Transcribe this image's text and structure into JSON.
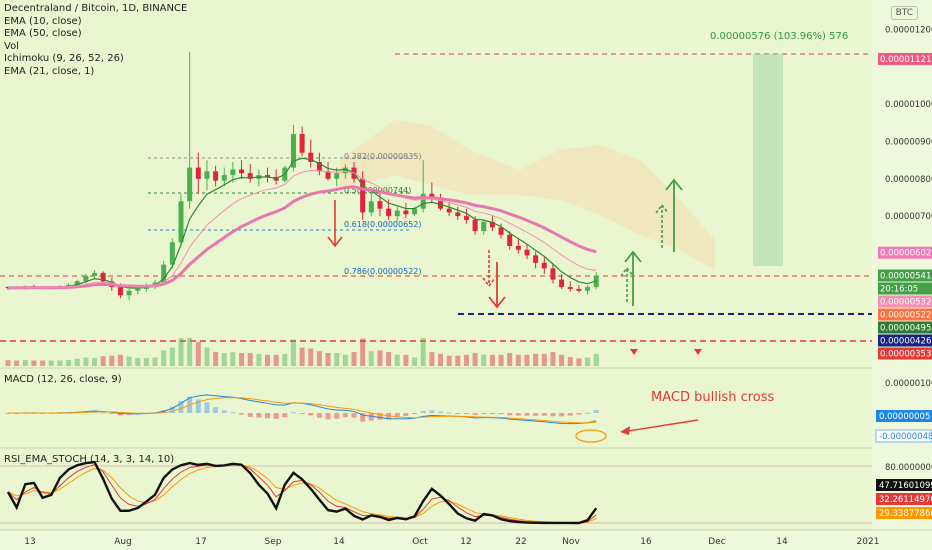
{
  "header": {
    "title": "Decentraland / Bitcoin, 1D, BINANCE",
    "indicators": [
      "EMA (10, close)",
      "EMA (50, close)",
      "Vol",
      "Ichimoku (9, 26, 52, 26)",
      "EMA (21, close, 1)"
    ],
    "currency": "BTC"
  },
  "colors": {
    "background": "#e9f6cf",
    "up": "#4caf50",
    "down": "#e0243c",
    "ema10": "#2e8b2e",
    "ema50": "#e877b0",
    "macd": "#1e88e5",
    "signal": "#ff9800",
    "arrow_down": "#e53935",
    "arrow_up": "#43a047",
    "support": "#1a237e"
  },
  "price_axis": {
    "ticks": [
      "0.00001200",
      "0.00001000",
      "0.00000900",
      "0.00000800",
      "0.00000700"
    ],
    "scale_max": 1.22e-05,
    "scale_min": 3.2e-06,
    "labels": [
      {
        "text": "0.00001121",
        "value": 1.121e-05,
        "bg": "#ef5a82",
        "fg": "#ffffff"
      },
      {
        "text": "0.00000602",
        "value": 6.02e-06,
        "bg": "#f27ab6",
        "fg": "#ffffff"
      },
      {
        "text": "0.00000541",
        "value": 5.41e-06,
        "bg": "#43a047",
        "fg": "#ffffff"
      },
      {
        "text": "20:16:05",
        "value": 5.41e-06,
        "bg": "#43a047",
        "fg": "#ffffff"
      },
      {
        "text": "0.00000532",
        "value": 5.32e-06,
        "bg": "#f48fb1",
        "fg": "#ffffff"
      },
      {
        "text": "0.00000522",
        "value": 5.22e-06,
        "bg": "#ff7043",
        "fg": "#ffffff"
      },
      {
        "text": "0.00000495",
        "value": 4.95e-06,
        "bg": "#2e7d32",
        "fg": "#ffffff"
      },
      {
        "text": "0.00000426",
        "value": 4.26e-06,
        "bg": "#1a237e",
        "fg": "#ffffff"
      },
      {
        "text": "0.00000353",
        "value": 3.53e-06,
        "bg": "#e53935",
        "fg": "#ffffff"
      }
    ]
  },
  "annotations": {
    "measure": "0.00000576 (103.96%) 576",
    "fib": [
      "0.382(0.00000835)",
      "0.5(0.00000744)",
      "0.618(0.00000652)",
      "0.786(0.00000522)"
    ],
    "macd_note": "MACD bullish cross"
  },
  "macd": {
    "title": "MACD (12, 26, close, 9)",
    "axis_top": "0.00000100",
    "labels": [
      {
        "text": "0.00000005",
        "bg": "#1e88e5"
      },
      {
        "text": "-0.00000048",
        "bg": "#ffffff"
      }
    ]
  },
  "stoch": {
    "title": "RSI_EMA_STOCH (14, 3, 3, 14, 10)",
    "axis_top": "80.00000000",
    "labels": [
      {
        "text": "47.71601099",
        "bg": "#111111"
      },
      {
        "text": "32.26114970",
        "bg": "#e53935"
      },
      {
        "text": "29.33877866",
        "bg": "#ff9800"
      }
    ]
  },
  "time_axis": {
    "labels": [
      "13",
      "Aug",
      "17",
      "Sep",
      "14",
      "Oct",
      "12",
      "22",
      "Nov",
      "16",
      "Dec",
      "14",
      "2021"
    ]
  },
  "chart_data": {
    "type": "candlestick",
    "title": "Decentraland / Bitcoin, 1D, BINANCE",
    "interval": "1D",
    "unit": "BTC",
    "price_range": [
      3.5e-06,
      1.2e-05
    ],
    "ohlc_approx": [
      [
        510,
        512,
        502,
        508
      ],
      [
        508,
        512,
        504,
        506
      ],
      [
        506,
        514,
        503,
        512
      ],
      [
        512,
        516,
        508,
        510
      ],
      [
        510,
        513,
        505,
        507
      ],
      [
        507,
        512,
        504,
        509
      ],
      [
        509,
        515,
        506,
        512
      ],
      [
        512,
        520,
        509,
        516
      ],
      [
        516,
        530,
        512,
        526
      ],
      [
        526,
        545,
        520,
        540
      ],
      [
        540,
        555,
        532,
        548
      ],
      [
        548,
        552,
        520,
        525
      ],
      [
        525,
        535,
        500,
        510
      ],
      [
        510,
        520,
        480,
        488
      ],
      [
        488,
        505,
        475,
        500
      ],
      [
        500,
        512,
        490,
        505
      ],
      [
        505,
        520,
        498,
        515
      ],
      [
        515,
        530,
        505,
        522
      ],
      [
        522,
        580,
        515,
        570
      ],
      [
        570,
        640,
        560,
        630
      ],
      [
        630,
        760,
        620,
        740
      ],
      [
        740,
        1140,
        720,
        830
      ],
      [
        830,
        870,
        760,
        800
      ],
      [
        800,
        850,
        770,
        820
      ],
      [
        820,
        835,
        780,
        795
      ],
      [
        795,
        830,
        780,
        810
      ],
      [
        810,
        845,
        790,
        825
      ],
      [
        825,
        850,
        800,
        815
      ],
      [
        815,
        840,
        790,
        800
      ],
      [
        800,
        825,
        780,
        810
      ],
      [
        810,
        830,
        790,
        805
      ],
      [
        805,
        825,
        785,
        795
      ],
      [
        795,
        835,
        790,
        830
      ],
      [
        830,
        945,
        820,
        920
      ],
      [
        920,
        940,
        860,
        870
      ],
      [
        870,
        905,
        830,
        845
      ],
      [
        845,
        870,
        810,
        820
      ],
      [
        820,
        845,
        795,
        800
      ],
      [
        800,
        830,
        780,
        815
      ],
      [
        815,
        840,
        800,
        830
      ],
      [
        830,
        845,
        790,
        800
      ],
      [
        800,
        820,
        690,
        710
      ],
      [
        710,
        760,
        700,
        740
      ],
      [
        740,
        765,
        700,
        720
      ],
      [
        720,
        745,
        690,
        700
      ],
      [
        700,
        725,
        685,
        715
      ],
      [
        715,
        735,
        695,
        705
      ],
      [
        705,
        725,
        700,
        720
      ],
      [
        720,
        850,
        710,
        760
      ],
      [
        760,
        790,
        735,
        745
      ],
      [
        745,
        760,
        715,
        720
      ],
      [
        720,
        735,
        700,
        710
      ],
      [
        710,
        725,
        690,
        700
      ],
      [
        700,
        720,
        680,
        690
      ],
      [
        690,
        700,
        650,
        660
      ],
      [
        660,
        690,
        650,
        685
      ],
      [
        685,
        700,
        660,
        670
      ],
      [
        670,
        680,
        640,
        650
      ],
      [
        650,
        660,
        610,
        620
      ],
      [
        620,
        640,
        600,
        610
      ],
      [
        610,
        625,
        585,
        595
      ],
      [
        595,
        605,
        560,
        575
      ],
      [
        575,
        590,
        545,
        560
      ],
      [
        560,
        575,
        520,
        530
      ],
      [
        530,
        545,
        505,
        510
      ],
      [
        510,
        525,
        498,
        505
      ],
      [
        505,
        515,
        495,
        500
      ],
      [
        500,
        515,
        490,
        510
      ],
      [
        510,
        550,
        505,
        541
      ]
    ]
  }
}
